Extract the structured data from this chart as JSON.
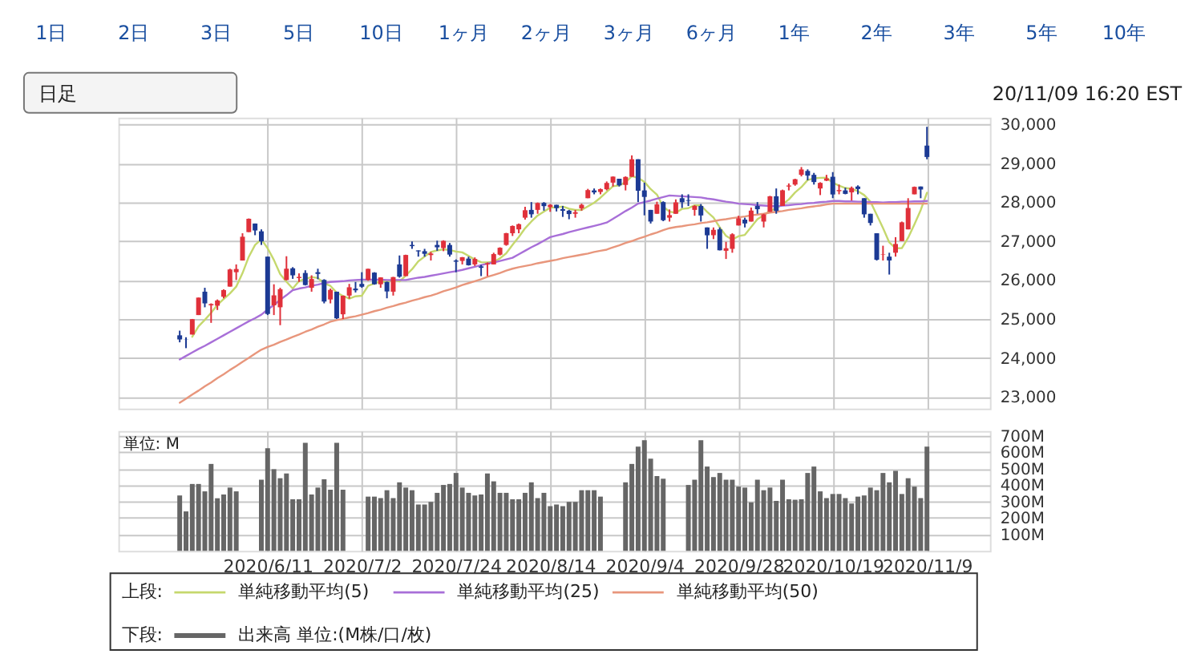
{
  "chart_data": [
    {
      "type": "candlestick",
      "annotations": [
        "1日",
        "2日",
        "3日",
        "5日",
        "10日",
        "1ヶ月",
        "2ヶ月",
        "3ヶ月",
        "6ヶ月",
        "1年",
        "2年",
        "3年",
        "5年",
        "10年",
        "日足",
        "20/11/09 16:20 EST"
      ],
      "categories": [
        null,
        null,
        null,
        null,
        null,
        null,
        null,
        null,
        null,
        null,
        null,
        null,
        null,
        null,
        "2020/6/11",
        null,
        null,
        null,
        null,
        null,
        null,
        null,
        null,
        null,
        null,
        null,
        null,
        null,
        null,
        "2020/7/2",
        null,
        null,
        null,
        null,
        null,
        null,
        null,
        null,
        null,
        null,
        null,
        null,
        null,
        null,
        "2020/7/24",
        null,
        null,
        null,
        null,
        null,
        null,
        null,
        null,
        null,
        null,
        null,
        null,
        null,
        null,
        "2020/8/14",
        null,
        null,
        null,
        null,
        null,
        null,
        null,
        null,
        null,
        null,
        null,
        null,
        null,
        null,
        "2020/9/4",
        null,
        null,
        null,
        null,
        null,
        null,
        null,
        null,
        null,
        null,
        null,
        null,
        null,
        null,
        "2020/9/28",
        null,
        null,
        null,
        null,
        null,
        null,
        null,
        null,
        null,
        null,
        null,
        null,
        null,
        null,
        "2020/10/19",
        null,
        null,
        null,
        null,
        null,
        null,
        null,
        null,
        null,
        null,
        null,
        null,
        null,
        null,
        "2020/11/9"
      ],
      "ohlc": [
        [
          24580,
          24700,
          24400,
          24474
        ],
        [
          24470,
          24530,
          24250,
          24465
        ],
        [
          24600,
          25000,
          24600,
          24995
        ],
        [
          25100,
          25550,
          25100,
          25548
        ],
        [
          25700,
          25800,
          25300,
          25400
        ],
        [
          25350,
          25400,
          24900,
          25383
        ],
        [
          25340,
          25500,
          25230,
          25475
        ],
        [
          25570,
          25760,
          25530,
          25742
        ],
        [
          25830,
          26290,
          25830,
          26270
        ],
        [
          26200,
          26400,
          26000,
          26282
        ],
        [
          26500,
          27200,
          26500,
          27111
        ],
        [
          27230,
          27580,
          27230,
          27572
        ],
        [
          27450,
          27450,
          27150,
          27272
        ],
        [
          27250,
          27300,
          26900,
          26990
        ],
        [
          26600,
          26600,
          25100,
          25128
        ],
        [
          25350,
          25890,
          25100,
          25606
        ],
        [
          25300,
          25800,
          24840,
          25763
        ],
        [
          26000,
          26610,
          25990,
          26290
        ],
        [
          26300,
          26330,
          26030,
          26120
        ],
        [
          26050,
          26170,
          25950,
          26080
        ],
        [
          26180,
          26250,
          25860,
          25871
        ],
        [
          25800,
          26120,
          25700,
          26025
        ],
        [
          26200,
          26290,
          26020,
          26156
        ],
        [
          26000,
          26020,
          25400,
          25445
        ],
        [
          25500,
          25780,
          25400,
          25746
        ],
        [
          25700,
          25700,
          25000,
          25016
        ],
        [
          25120,
          25600,
          25000,
          25596
        ],
        [
          25600,
          25900,
          25520,
          25813
        ],
        [
          25780,
          25950,
          25680,
          25735
        ],
        [
          25900,
          26200,
          25800,
          25827
        ],
        [
          26000,
          26290,
          25980,
          26287
        ],
        [
          26190,
          26200,
          25880,
          25890
        ],
        [
          25890,
          26070,
          25800,
          26067
        ],
        [
          25950,
          25960,
          25530,
          25706
        ],
        [
          25700,
          26080,
          25600,
          26075
        ],
        [
          26400,
          26630,
          26060,
          26086
        ],
        [
          26100,
          26650,
          26100,
          26643
        ],
        [
          26900,
          26990,
          26800,
          26870
        ],
        [
          26760,
          26760,
          26600,
          26735
        ],
        [
          26740,
          26800,
          26600,
          26672
        ],
        [
          26640,
          26720,
          26500,
          26680
        ],
        [
          26900,
          27010,
          26750,
          26840
        ],
        [
          26820,
          27020,
          26740,
          27005
        ],
        [
          26900,
          26950,
          26600,
          26652
        ],
        [
          26500,
          26530,
          26200,
          26470
        ],
        [
          26490,
          26590,
          26400,
          26585
        ],
        [
          26550,
          26600,
          26370,
          26379
        ],
        [
          26400,
          26580,
          26360,
          26540
        ],
        [
          26350,
          26390,
          26100,
          26314
        ],
        [
          26400,
          26450,
          26100,
          26428
        ],
        [
          26400,
          26700,
          26400,
          26665
        ],
        [
          26650,
          26840,
          26630,
          26828
        ],
        [
          26900,
          27210,
          26880,
          27202
        ],
        [
          27200,
          27400,
          27130,
          27387
        ],
        [
          27300,
          27450,
          27200,
          27433
        ],
        [
          27600,
          27880,
          27550,
          27791
        ],
        [
          27800,
          28000,
          27600,
          27687
        ],
        [
          27800,
          27990,
          27700,
          27977
        ],
        [
          27980,
          28000,
          27780,
          27897
        ],
        [
          27870,
          27950,
          27750,
          27931
        ],
        [
          27930,
          27930,
          27760,
          27845
        ],
        [
          27820,
          27900,
          27620,
          27778
        ],
        [
          27780,
          27800,
          27560,
          27693
        ],
        [
          27700,
          27800,
          27600,
          27740
        ],
        [
          27840,
          27960,
          27780,
          27930
        ],
        [
          28100,
          28340,
          28100,
          28308
        ],
        [
          28300,
          28350,
          28200,
          28249
        ],
        [
          28260,
          28350,
          28200,
          28332
        ],
        [
          28330,
          28530,
          28300,
          28492
        ],
        [
          28500,
          28660,
          28400,
          28654
        ],
        [
          28600,
          28600,
          28400,
          28430
        ],
        [
          28440,
          28660,
          28300,
          28646
        ],
        [
          28650,
          29200,
          28650,
          29100
        ],
        [
          29100,
          29100,
          28000,
          28292
        ],
        [
          28300,
          28500,
          27660,
          28133
        ],
        [
          27800,
          27800,
          27450,
          27501
        ],
        [
          27700,
          28010,
          27700,
          27940
        ],
        [
          28000,
          28020,
          27510,
          27535
        ],
        [
          27600,
          27810,
          27500,
          27666
        ],
        [
          27700,
          28070,
          27700,
          27993
        ],
        [
          28100,
          28200,
          27850,
          27996
        ],
        [
          28050,
          28200,
          27900,
          28032
        ],
        [
          27800,
          27920,
          27650,
          27902
        ],
        [
          27900,
          27950,
          27500,
          27657
        ],
        [
          27350,
          27350,
          26800,
          27148
        ],
        [
          27150,
          27350,
          27050,
          27288
        ],
        [
          27300,
          27350,
          26760,
          26763
        ],
        [
          26750,
          26980,
          26540,
          26815
        ],
        [
          26800,
          27200,
          26700,
          27174
        ],
        [
          27400,
          27650,
          27400,
          27584
        ],
        [
          27550,
          27600,
          27350,
          27452
        ],
        [
          27500,
          27860,
          27500,
          27782
        ],
        [
          27900,
          28000,
          27700,
          27817
        ],
        [
          27500,
          27700,
          27350,
          27683
        ],
        [
          27750,
          28160,
          27750,
          28149
        ],
        [
          28150,
          28350,
          27700,
          27773
        ],
        [
          27900,
          28320,
          27900,
          28303
        ],
        [
          28400,
          28480,
          28300,
          28426
        ],
        [
          28450,
          28600,
          28420,
          28587
        ],
        [
          28700,
          28900,
          28660,
          28838
        ],
        [
          28800,
          28840,
          28560,
          28680
        ],
        [
          28700,
          28750,
          28450,
          28515
        ],
        [
          28350,
          28510,
          28180,
          28494
        ],
        [
          28550,
          28700,
          28540,
          28607
        ],
        [
          28650,
          28770,
          28100,
          28196
        ],
        [
          28280,
          28450,
          28200,
          28309
        ],
        [
          28300,
          28370,
          28200,
          28211
        ],
        [
          28250,
          28400,
          28040,
          28364
        ],
        [
          28400,
          28430,
          28200,
          28336
        ],
        [
          28100,
          28100,
          27600,
          27686
        ],
        [
          27700,
          27700,
          27400,
          27464
        ],
        [
          27200,
          27200,
          26500,
          26520
        ],
        [
          26650,
          26880,
          26500,
          26660
        ],
        [
          26600,
          26700,
          26140,
          26502
        ],
        [
          26700,
          27100,
          26600,
          26925
        ],
        [
          27000,
          27500,
          27000,
          27481
        ],
        [
          27300,
          28100,
          27300,
          27848
        ],
        [
          28200,
          28400,
          28200,
          28391
        ],
        [
          28400,
          28400,
          28100,
          28323
        ],
        [
          29450,
          29933,
          29100,
          29158
        ]
      ],
      "colors": [
        "#1c3a94",
        "#1c3a94",
        "#e0303a",
        "#e0303a",
        "#1c3a94",
        "#e0303a",
        "#e0303a",
        "#e0303a",
        "#e0303a",
        "#e0303a",
        "#e0303a",
        "#e0303a",
        "#1c3a94",
        "#1c3a94",
        "#1c3a94",
        "#e0303a",
        "#e0303a",
        "#e0303a",
        "#1c3a94",
        "#e0303a",
        "#1c3a94",
        "#e0303a",
        "#1c3a94",
        "#1c3a94",
        "#e0303a",
        "#1c3a94",
        "#e0303a",
        "#e0303a",
        "#1c3a94",
        "#1c3a94",
        "#e0303a",
        "#1c3a94",
        "#e0303a",
        "#1c3a94",
        "#e0303a",
        "#1c3a94",
        "#e0303a",
        "#1c3a94",
        "#1c3a94",
        "#1c3a94",
        "#e0303a",
        "#1c3a94",
        "#e0303a",
        "#1c3a94",
        "#1c3a94",
        "#e0303a",
        "#1c3a94",
        "#e0303a",
        "#1c3a94",
        "#e0303a",
        "#e0303a",
        "#e0303a",
        "#e0303a",
        "#e0303a",
        "#e0303a",
        "#e0303a",
        "#1c3a94",
        "#e0303a",
        "#1c3a94",
        "#e0303a",
        "#1c3a94",
        "#1c3a94",
        "#1c3a94",
        "#e0303a",
        "#e0303a",
        "#e0303a",
        "#1c3a94",
        "#e0303a",
        "#e0303a",
        "#e0303a",
        "#1c3a94",
        "#e0303a",
        "#e0303a",
        "#1c3a94",
        "#1c3a94",
        "#1c3a94",
        "#e0303a",
        "#1c3a94",
        "#e0303a",
        "#e0303a",
        "#1c3a94",
        "#1c3a94",
        "#e0303a",
        "#1c3a94",
        "#1c3a94",
        "#e0303a",
        "#1c3a94",
        "#e0303a",
        "#e0303a",
        "#e0303a",
        "#1c3a94",
        "#e0303a",
        "#1c3a94",
        "#e0303a",
        "#e0303a",
        "#1c3a94",
        "#e0303a",
        "#e0303a",
        "#e0303a",
        "#e0303a",
        "#1c3a94",
        "#1c3a94",
        "#e0303a",
        "#e0303a",
        "#1c3a94",
        "#e0303a",
        "#1c3a94",
        "#e0303a",
        "#1c3a94",
        "#1c3a94",
        "#1c3a94",
        "#1c3a94",
        "#e0303a",
        "#1c3a94",
        "#e0303a",
        "#e0303a",
        "#e0303a",
        "#e0303a",
        "#1c3a94",
        "#1c3a94"
      ],
      "series": [
        {
          "name": "単純移動平均(5)",
          "type": "line",
          "color": "#c5d86d",
          "values": [
            null,
            null,
            24543,
            24812,
            24976,
            25158,
            25360,
            25510,
            25654,
            25830,
            26176,
            26595,
            26901,
            27045,
            26815,
            26514,
            26152,
            25955,
            25781,
            25972,
            26025,
            26077,
            26050,
            25915,
            25849,
            25678,
            25592,
            25523,
            25581,
            25597,
            25852,
            25910,
            25961,
            25955,
            26005,
            25965,
            26115,
            26276,
            26482,
            26601,
            26720,
            26759,
            26786,
            26770,
            26729,
            26710,
            26618,
            26525,
            26458,
            26449,
            26465,
            26555,
            26687,
            26902,
            27103,
            27328,
            27500,
            27655,
            27757,
            27857,
            27867,
            27886,
            27829,
            27797,
            27797,
            27890,
            27984,
            28112,
            28262,
            28407,
            28431,
            28511,
            28664,
            28624,
            28520,
            28334,
            28193,
            27880,
            27755,
            27727,
            27826,
            27844,
            27918,
            27916,
            27747,
            27605,
            27352,
            27134,
            27038,
            27125,
            27158,
            27361,
            27562,
            27664,
            27777,
            27841,
            27945,
            28067,
            28248,
            28385,
            28567,
            28609,
            28623,
            28627,
            28498,
            28424,
            28363,
            28337,
            28283,
            28181,
            28012,
            27674,
            27333,
            26966,
            26814,
            26818,
            27083,
            27429,
            27794,
            28240
          ]
        },
        {
          "name": "単純移動平均(25)",
          "type": "line",
          "color": "#a86fd8",
          "values": [
            23960,
            24050,
            24140,
            24230,
            24310,
            24400,
            24490,
            24580,
            24670,
            24760,
            24850,
            24940,
            25020,
            25110,
            25240,
            25360,
            25490,
            25610,
            25740,
            25780,
            25810,
            25850,
            25880,
            25920,
            25950,
            25960,
            25970,
            25990,
            26000,
            26010,
            26010,
            26010,
            26010,
            26000,
            26000,
            26000,
            26000,
            26030,
            26060,
            26080,
            26110,
            26140,
            26170,
            26200,
            26225,
            26260,
            26300,
            26340,
            26380,
            26420,
            26450,
            26490,
            26530,
            26570,
            26660,
            26750,
            26840,
            26920,
            27010,
            27100,
            27140,
            27180,
            27230,
            27270,
            27310,
            27350,
            27390,
            27430,
            27475,
            27570,
            27670,
            27770,
            27860,
            27960,
            28000,
            28040,
            28090,
            28130,
            28170,
            28160,
            28150,
            28140,
            28130,
            28120,
            28090,
            28070,
            28040,
            28010,
            27990,
            27960,
            27950,
            27940,
            27920,
            27910,
            27900,
            27890,
            27910,
            27920,
            27940,
            27950,
            27970,
            27980,
            28000,
            28010,
            28030,
            28030,
            28020,
            28020,
            28010,
            28010,
            28000,
            28000,
            27990,
            28000,
            28000,
            28010,
            28010,
            28020,
            28020,
            28030
          ]
        },
        {
          "name": "単純移動平均(50)",
          "type": "line",
          "color": "#e8967c",
          "values": [
            22850,
            22950,
            23060,
            23160,
            23270,
            23370,
            23480,
            23580,
            23690,
            23790,
            23900,
            24000,
            24110,
            24210,
            24280,
            24340,
            24410,
            24470,
            24540,
            24600,
            24670,
            24730,
            24800,
            24860,
            24930,
            24970,
            25000,
            25040,
            25070,
            25110,
            25150,
            25200,
            25240,
            25290,
            25330,
            25380,
            25420,
            25470,
            25510,
            25560,
            25600,
            25650,
            25710,
            25760,
            25810,
            25870,
            25920,
            25970,
            26020,
            26080,
            26130,
            26180,
            26240,
            26290,
            26330,
            26360,
            26390,
            26430,
            26460,
            26490,
            26520,
            26560,
            26590,
            26620,
            26650,
            26680,
            26720,
            26750,
            26780,
            26840,
            26890,
            26950,
            27000,
            27060,
            27110,
            27170,
            27220,
            27280,
            27330,
            27360,
            27380,
            27410,
            27430,
            27460,
            27480,
            27510,
            27540,
            27560,
            27590,
            27610,
            27630,
            27660,
            27680,
            27700,
            27730,
            27750,
            27770,
            27800,
            27820,
            27840,
            27870,
            27890,
            27910,
            27940,
            27960,
            27960,
            27960,
            27960,
            27960,
            27960,
            27960,
            27960,
            27960,
            27960,
            27960,
            27960,
            27960,
            27960,
            27960,
            27960
          ]
        }
      ],
      "ylim": [
        22700,
        30170
      ],
      "yticks": [
        {
          "value": 23000,
          "label": "23,000"
        },
        {
          "value": 24000,
          "label": "24,000"
        },
        {
          "value": 25000,
          "label": "25,000"
        },
        {
          "value": 26000,
          "label": "26,000"
        },
        {
          "value": 27000,
          "label": "27,000"
        },
        {
          "value": 28000,
          "label": "28,000"
        },
        {
          "value": 29000,
          "label": "29,000"
        },
        {
          "value": 30000,
          "label": "30,000"
        }
      ],
      "grid": true,
      "tick_labels": "y",
      "legend": "bottom",
      "legend_title": "上段:"
    },
    {
      "type": "bar",
      "categories": [
        null,
        null,
        null,
        null,
        null,
        null,
        null,
        null,
        null,
        null,
        null,
        null,
        null,
        null,
        "2020/6/11",
        null,
        null,
        null,
        null,
        null,
        null,
        null,
        null,
        null,
        null,
        null,
        null,
        null,
        null,
        "2020/7/2",
        null,
        null,
        null,
        null,
        null,
        null,
        null,
        null,
        null,
        null,
        null,
        null,
        null,
        null,
        "2020/7/24",
        null,
        null,
        null,
        null,
        null,
        null,
        null,
        null,
        null,
        null,
        null,
        null,
        null,
        null,
        "2020/8/14",
        null,
        null,
        null,
        null,
        null,
        null,
        null,
        null,
        null,
        null,
        null,
        null,
        null,
        null,
        "2020/9/4",
        null,
        null,
        null,
        null,
        null,
        null,
        null,
        null,
        null,
        null,
        null,
        null,
        null,
        null,
        "2020/9/28",
        null,
        null,
        null,
        null,
        null,
        null,
        null,
        null,
        null,
        null,
        null,
        null,
        null,
        null,
        "2020/10/19",
        null,
        null,
        null,
        null,
        null,
        null,
        null,
        null,
        null,
        null,
        null,
        null,
        null,
        null,
        "2020/11/9"
      ],
      "series": [
        {
          "name": "出来高 単位:(M株/口/枚)",
          "color": "#666666",
          "values": [
            337,
            240,
            407,
            407,
            362,
            529,
            320,
            343,
            385,
            362,
            null,
            null,
            null,
            433,
            625,
            497,
            442,
            471,
            314,
            314,
            657,
            343,
            385,
            436,
            372,
            657,
            372,
            null,
            null,
            null,
            330,
            330,
            321,
            369,
            321,
            417,
            385,
            369,
            282,
            282,
            298,
            353,
            401,
            407,
            474,
            385,
            353,
            337,
            343,
            471,
            423,
            353,
            353,
            314,
            314,
            353,
            417,
            321,
            353,
            272,
            282,
            272,
            298,
            298,
            369,
            369,
            369,
            330,
            null,
            null,
            null,
            417,
            529,
            635,
            673,
            561,
            455,
            439,
            null,
            null,
            null,
            401,
            433,
            673,
            513,
            449,
            474,
            433,
            433,
            391,
            385,
            295,
            433,
            369,
            385,
            304,
            433,
            314,
            311,
            314,
            474,
            513,
            362,
            321,
            346,
            346,
            321,
            288,
            330,
            337,
            385,
            369,
            474,
            417,
            487,
            346,
            442,
            391,
            321,
            635
          ]
        }
      ],
      "ylim": [
        0,
        730
      ],
      "yticks": [
        {
          "value": 100,
          "label": "100M"
        },
        {
          "value": 200,
          "label": "200M"
        },
        {
          "value": 300,
          "label": "300M"
        },
        {
          "value": 400,
          "label": "400M"
        },
        {
          "value": 500,
          "label": "500M"
        },
        {
          "value": 600,
          "label": "600M"
        },
        {
          "value": 700,
          "label": "700M"
        }
      ],
      "ylabel": "単位: M",
      "grid": true,
      "legend": "bottom",
      "legend_title": "下段:"
    }
  ]
}
